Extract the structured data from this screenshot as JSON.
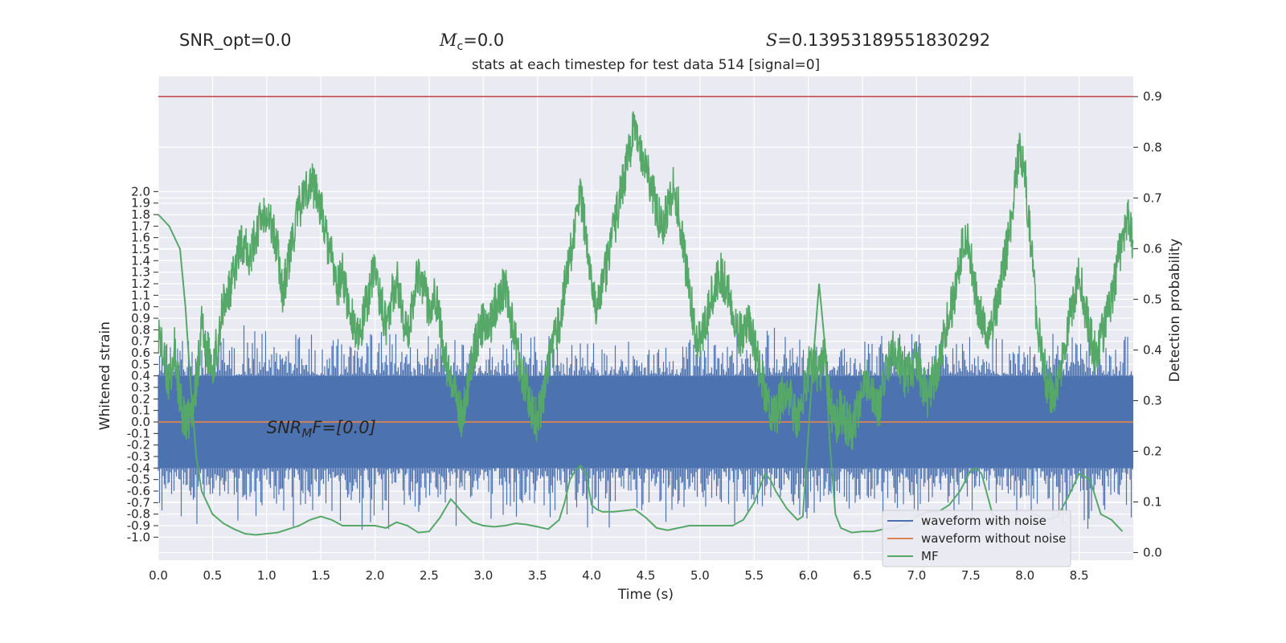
{
  "header_stats": {
    "snr_opt": "SNR_opt=0.0",
    "mc_symbol": "M",
    "mc_sub": "c",
    "mc_value": "=0.0",
    "s_symbol": "S",
    "s_value": "=0.13953189551830292"
  },
  "chart_data": {
    "type": "line",
    "title": "stats at each timestep for test data 514 [signal=0]",
    "xlabel": "Time (s)",
    "ylabel_left": "Whitened strain",
    "ylabel_right": "Detection probability",
    "xlim": [
      0.0,
      9.0
    ],
    "ylim_left": [
      -1.2,
      3.0
    ],
    "ylim_right": [
      -0.015,
      0.94
    ],
    "x_ticks": [
      "0.0",
      "0.5",
      "1.0",
      "1.5",
      "2.0",
      "2.5",
      "3.0",
      "3.5",
      "4.0",
      "4.5",
      "5.0",
      "5.5",
      "6.0",
      "6.5",
      "7.0",
      "7.5",
      "8.0",
      "8.5"
    ],
    "left_ticks": [
      "2.0",
      "1.9",
      "1.8",
      "1.7",
      "1.6",
      "1.5",
      "1.4",
      "1.3",
      "1.2",
      "1.1",
      "1.0",
      "0.9",
      "0.8",
      "0.7",
      "0.6",
      "0.5",
      "0.4",
      "0.3",
      "0.2",
      "0.1",
      "0.0",
      "-0.1",
      "-0.2",
      "-0.3",
      "-0.4",
      "-0.5",
      "-0.6",
      "-0.7",
      "-0.8",
      "-0.9",
      "-1.0"
    ],
    "right_ticks": [
      "0.9",
      "0.8",
      "0.7",
      "0.6",
      "0.5",
      "0.4",
      "0.3",
      "0.2",
      "0.1",
      "0.0"
    ],
    "threshold": 0.9,
    "annotation": {
      "base": "SNR",
      "sub": "M",
      "suffix": "F=[0.0]",
      "x": 1.0,
      "y": -0.05
    },
    "legend_position": "lower right",
    "colors": {
      "noise": "#4c72b0",
      "clean": "#dd8452",
      "mf": "#55a868",
      "threshold": "#c44e52",
      "grid": "#ffffff",
      "background": "#eaeaf2"
    },
    "series": [
      {
        "name": "waveform with noise",
        "axis": "left",
        "note": "dense noise band",
        "band_core": [
          -0.4,
          0.4
        ],
        "spike_range": [
          -0.95,
          0.85
        ]
      },
      {
        "name": "waveform without noise",
        "axis": "left",
        "x": [
          0.0,
          9.0
        ],
        "y": [
          0.0,
          0.0
        ]
      },
      {
        "name": "MF",
        "axis": "left",
        "x": [
          0.0,
          0.1,
          0.2,
          0.25,
          0.3,
          0.35,
          0.4,
          0.5,
          0.6,
          0.7,
          0.8,
          0.9,
          1.0,
          1.1,
          1.2,
          1.3,
          1.4,
          1.5,
          1.6,
          1.7,
          1.8,
          1.9,
          2.0,
          2.1,
          2.2,
          2.3,
          2.4,
          2.5,
          2.6,
          2.7,
          2.75,
          2.8,
          2.9,
          3.0,
          3.1,
          3.2,
          3.3,
          3.4,
          3.5,
          3.6,
          3.7,
          3.75,
          3.8,
          3.85,
          3.9,
          3.95,
          4.0,
          4.05,
          4.1,
          4.2,
          4.3,
          4.4,
          4.5,
          4.6,
          4.7,
          4.8,
          4.9,
          5.0,
          5.1,
          5.2,
          5.3,
          5.4,
          5.5,
          5.6,
          5.65,
          5.7,
          5.8,
          5.9,
          5.95,
          6.0,
          6.05,
          6.1,
          6.15,
          6.2,
          6.25,
          6.3,
          6.4,
          6.5,
          6.6,
          6.7,
          6.8,
          6.9,
          7.0,
          7.1,
          7.2,
          7.3,
          7.4,
          7.5,
          7.55,
          7.6,
          7.7,
          7.8,
          7.9,
          8.0,
          8.1,
          8.2,
          8.3,
          8.4,
          8.5,
          8.6,
          8.7,
          8.8,
          8.9
        ],
        "y": [
          1.8,
          1.7,
          1.5,
          1.0,
          0.3,
          -0.3,
          -0.6,
          -0.8,
          -0.88,
          -0.93,
          -0.97,
          -0.98,
          -0.97,
          -0.96,
          -0.93,
          -0.9,
          -0.85,
          -0.82,
          -0.85,
          -0.9,
          -0.9,
          -0.9,
          -0.9,
          -0.92,
          -0.87,
          -0.9,
          -0.96,
          -0.95,
          -0.83,
          -0.67,
          -0.72,
          -0.78,
          -0.87,
          -0.9,
          -0.91,
          -0.9,
          -0.88,
          -0.89,
          -0.91,
          -0.93,
          -0.85,
          -0.7,
          -0.5,
          -0.42,
          -0.38,
          -0.45,
          -0.72,
          -0.76,
          -0.78,
          -0.78,
          -0.77,
          -0.76,
          -0.83,
          -0.92,
          -0.94,
          -0.92,
          -0.9,
          -0.9,
          -0.9,
          -0.9,
          -0.9,
          -0.85,
          -0.7,
          -0.45,
          -0.5,
          -0.6,
          -0.75,
          -0.85,
          -0.82,
          -0.1,
          0.6,
          1.2,
          0.7,
          -0.2,
          -0.8,
          -0.92,
          -0.96,
          -0.95,
          -0.95,
          -0.93,
          -0.92,
          -0.88,
          -0.82,
          -0.78,
          -0.78,
          -0.72,
          -0.6,
          -0.42,
          -0.4,
          -0.45,
          -0.8,
          -0.86,
          -0.87,
          -0.85,
          -0.8,
          -0.85,
          -0.82,
          -0.65,
          -0.45,
          -0.5,
          -0.8,
          -0.85,
          -0.95
        ]
      },
      {
        "name": "Detection probability",
        "axis": "right",
        "x": [
          0.0,
          0.05,
          0.1,
          0.15,
          0.2,
          0.25,
          0.3,
          0.35,
          0.4,
          0.45,
          0.5,
          0.55,
          0.6,
          0.65,
          0.7,
          0.75,
          0.8,
          0.85,
          0.9,
          0.95,
          1.0,
          1.05,
          1.1,
          1.15,
          1.2,
          1.25,
          1.3,
          1.35,
          1.4,
          1.45,
          1.5,
          1.55,
          1.6,
          1.65,
          1.7,
          1.75,
          1.8,
          1.85,
          1.9,
          1.95,
          2.0,
          2.05,
          2.1,
          2.15,
          2.2,
          2.25,
          2.3,
          2.35,
          2.4,
          2.45,
          2.5,
          2.55,
          2.6,
          2.65,
          2.7,
          2.75,
          2.8,
          2.85,
          2.9,
          2.95,
          3.0,
          3.05,
          3.1,
          3.15,
          3.2,
          3.25,
          3.3,
          3.35,
          3.4,
          3.45,
          3.5,
          3.55,
          3.6,
          3.65,
          3.7,
          3.75,
          3.8,
          3.85,
          3.9,
          3.95,
          4.0,
          4.05,
          4.1,
          4.15,
          4.2,
          4.25,
          4.3,
          4.35,
          4.4,
          4.45,
          4.5,
          4.55,
          4.6,
          4.65,
          4.7,
          4.75,
          4.8,
          4.85,
          4.9,
          4.95,
          5.0,
          5.05,
          5.1,
          5.15,
          5.2,
          5.25,
          5.3,
          5.35,
          5.4,
          5.45,
          5.5,
          5.55,
          5.6,
          5.65,
          5.7,
          5.75,
          5.8,
          5.85,
          5.9,
          5.95,
          6.0,
          6.05,
          6.1,
          6.15,
          6.2,
          6.25,
          6.3,
          6.35,
          6.4,
          6.45,
          6.5,
          6.55,
          6.6,
          6.65,
          6.7,
          6.75,
          6.8,
          6.85,
          6.9,
          6.95,
          7.0,
          7.05,
          7.1,
          7.15,
          7.2,
          7.25,
          7.3,
          7.35,
          7.4,
          7.45,
          7.5,
          7.55,
          7.6,
          7.65,
          7.7,
          7.75,
          7.8,
          7.85,
          7.9,
          7.95,
          8.0,
          8.05,
          8.1,
          8.15,
          8.2,
          8.25,
          8.3,
          8.35,
          8.4,
          8.45,
          8.5,
          8.55,
          8.6,
          8.65,
          8.7,
          8.75,
          8.8,
          8.85,
          8.9,
          8.95,
          9.0
        ],
        "y": [
          0.44,
          0.38,
          0.33,
          0.4,
          0.3,
          0.25,
          0.27,
          0.33,
          0.45,
          0.4,
          0.36,
          0.42,
          0.49,
          0.51,
          0.55,
          0.6,
          0.62,
          0.58,
          0.63,
          0.66,
          0.68,
          0.64,
          0.6,
          0.51,
          0.57,
          0.63,
          0.68,
          0.71,
          0.73,
          0.72,
          0.68,
          0.62,
          0.58,
          0.52,
          0.55,
          0.49,
          0.46,
          0.41,
          0.47,
          0.52,
          0.56,
          0.5,
          0.45,
          0.5,
          0.54,
          0.48,
          0.42,
          0.5,
          0.56,
          0.52,
          0.48,
          0.52,
          0.45,
          0.38,
          0.33,
          0.3,
          0.27,
          0.32,
          0.38,
          0.43,
          0.45,
          0.44,
          0.48,
          0.51,
          0.53,
          0.47,
          0.41,
          0.36,
          0.32,
          0.28,
          0.26,
          0.31,
          0.36,
          0.41,
          0.45,
          0.52,
          0.58,
          0.65,
          0.7,
          0.62,
          0.55,
          0.48,
          0.52,
          0.58,
          0.63,
          0.69,
          0.74,
          0.79,
          0.85,
          0.8,
          0.76,
          0.72,
          0.68,
          0.64,
          0.68,
          0.72,
          0.68,
          0.6,
          0.52,
          0.44,
          0.41,
          0.46,
          0.5,
          0.53,
          0.55,
          0.52,
          0.48,
          0.44,
          0.42,
          0.45,
          0.41,
          0.36,
          0.32,
          0.28,
          0.27,
          0.3,
          0.33,
          0.29,
          0.26,
          0.31,
          0.36,
          0.38,
          0.35,
          0.39,
          0.3,
          0.25,
          0.28,
          0.26,
          0.24,
          0.28,
          0.31,
          0.34,
          0.31,
          0.28,
          0.33,
          0.38,
          0.41,
          0.37,
          0.34,
          0.36,
          0.38,
          0.33,
          0.31,
          0.34,
          0.37,
          0.42,
          0.47,
          0.5,
          0.58,
          0.63,
          0.58,
          0.5,
          0.46,
          0.42,
          0.45,
          0.5,
          0.56,
          0.62,
          0.72,
          0.79,
          0.74,
          0.62,
          0.48,
          0.4,
          0.34,
          0.31,
          0.34,
          0.38,
          0.45,
          0.5,
          0.55,
          0.49,
          0.43,
          0.39,
          0.42,
          0.46,
          0.5,
          0.56,
          0.62,
          0.67,
          0.6
        ]
      }
    ]
  }
}
